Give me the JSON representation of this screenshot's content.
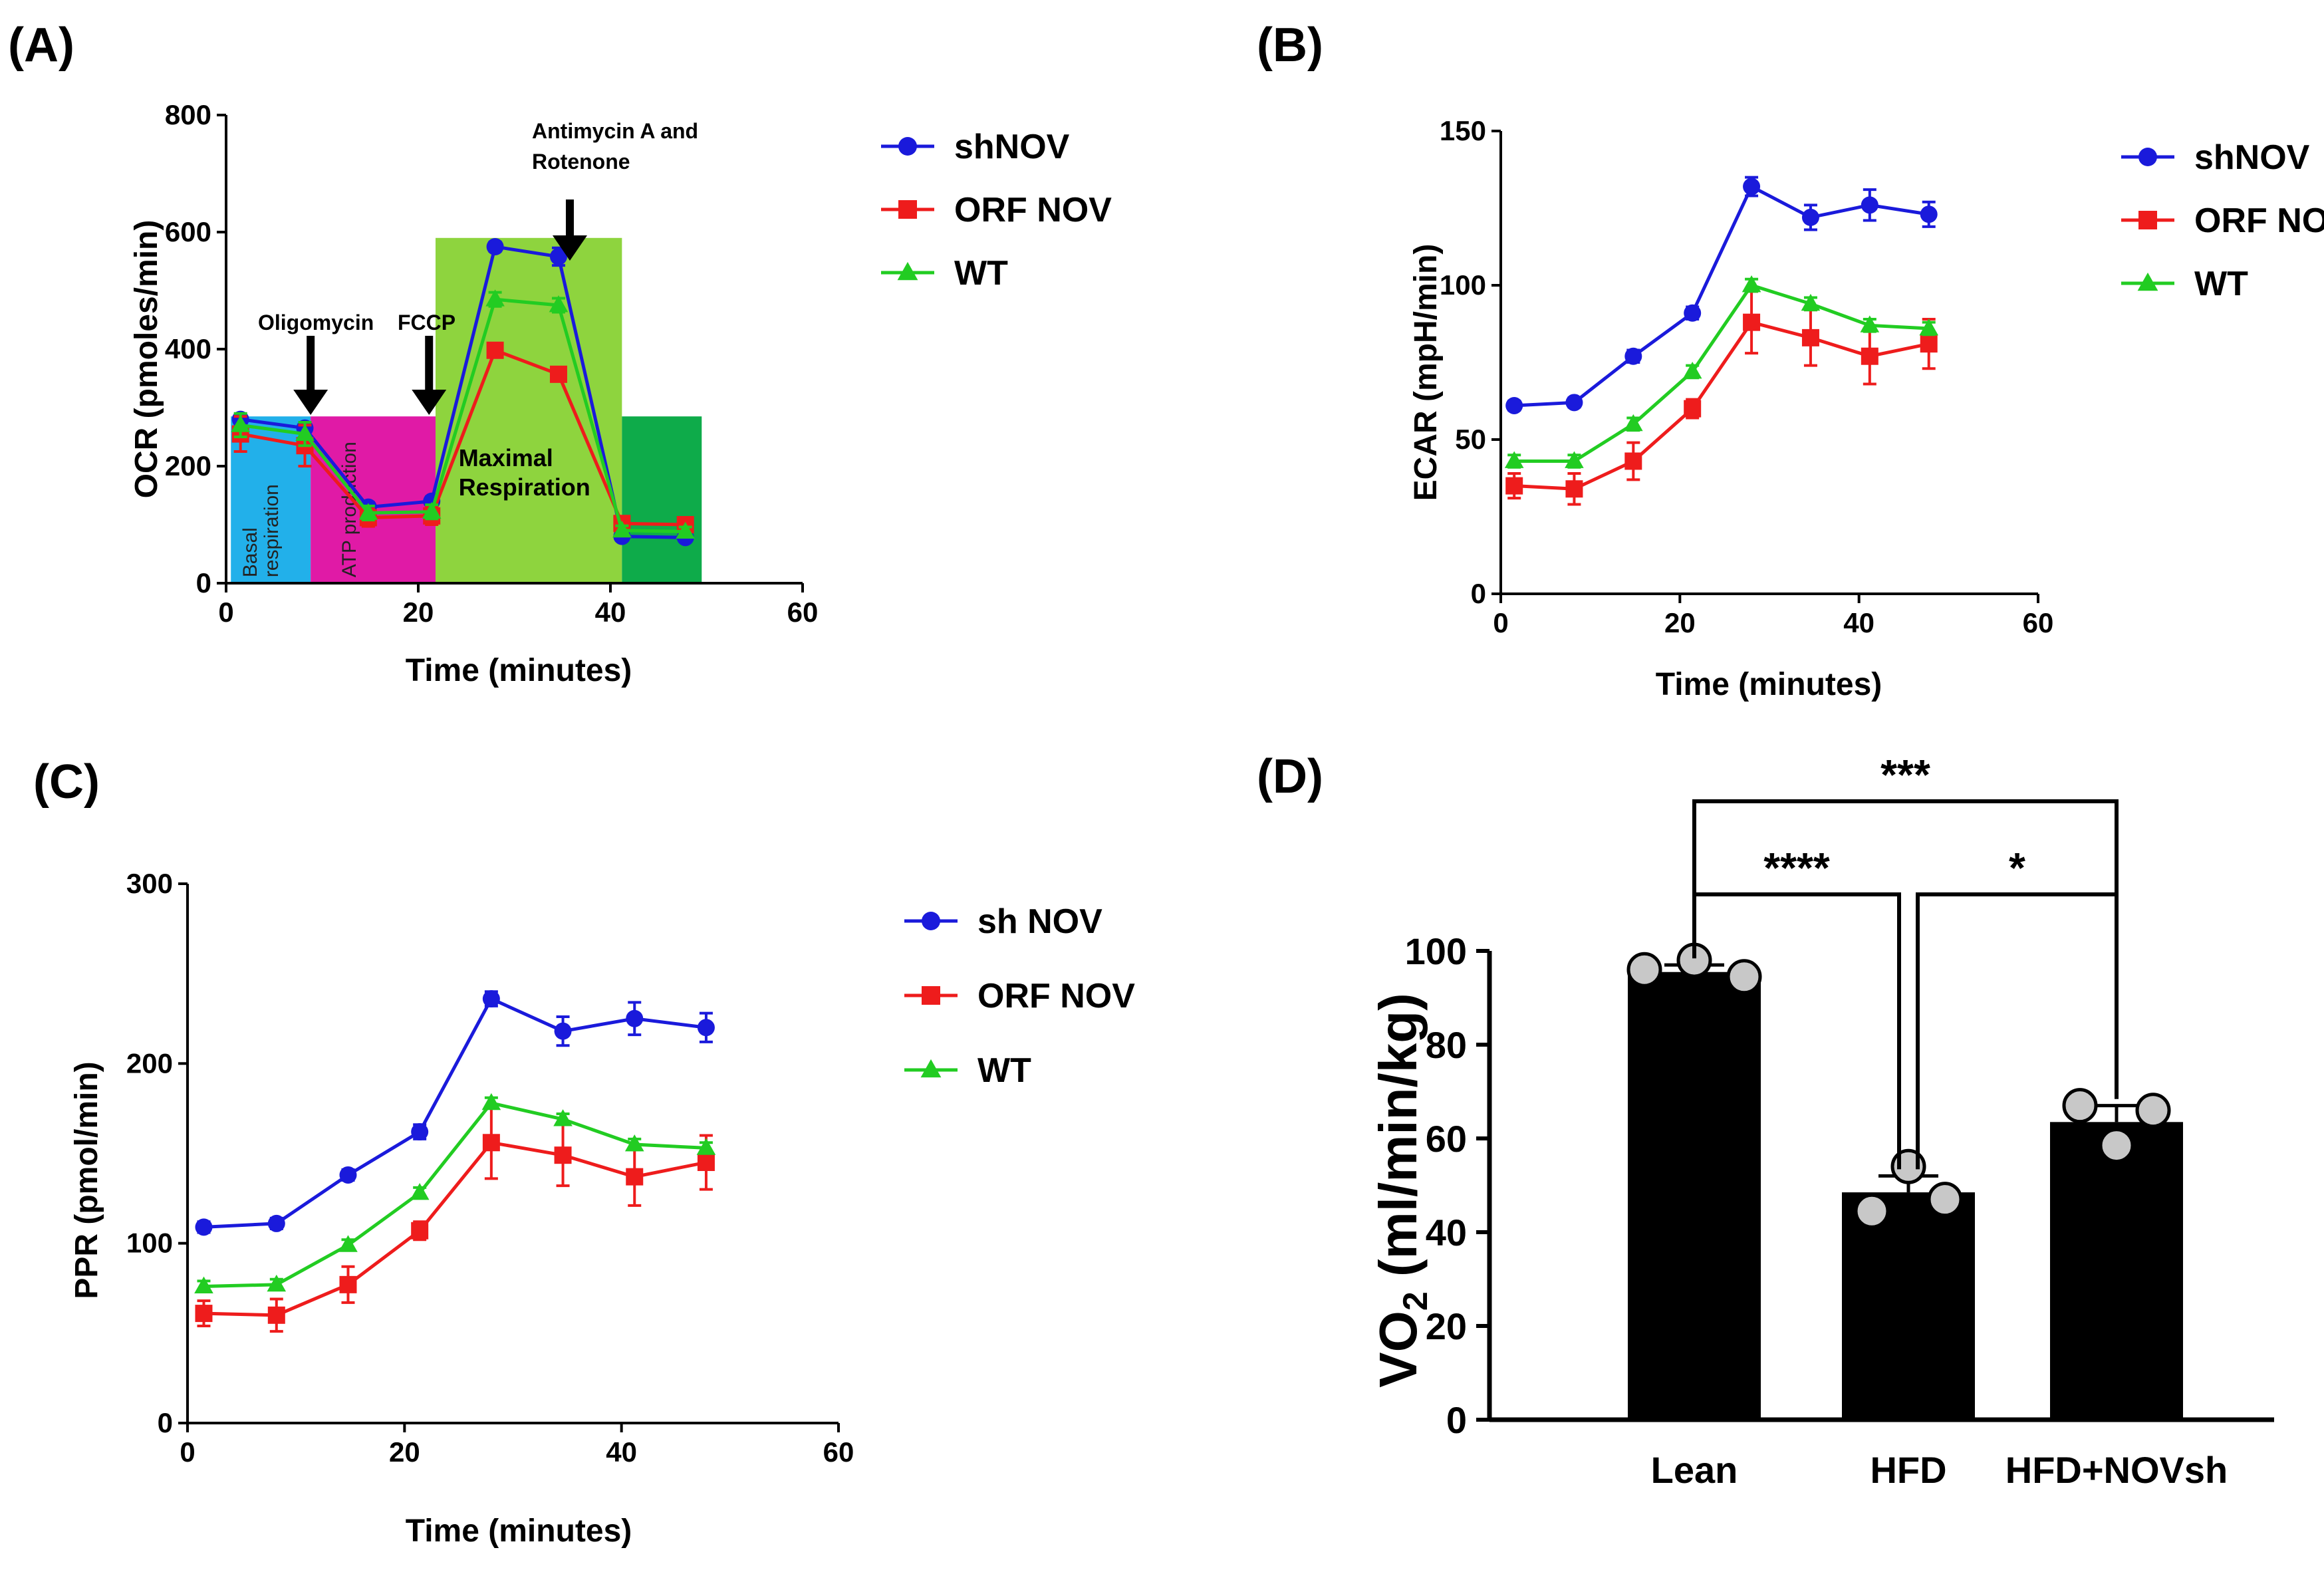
{
  "colors": {
    "shNOV": "#1a1adb",
    "ORF": "#ee1c1c",
    "WT": "#22cc22",
    "basal": "#22b0ea",
    "atp": "#e01aa6",
    "maximal": "#8ed43e",
    "nonmito": "#0eab4a",
    "bar": "#000000",
    "dot": "#c8c8c8"
  },
  "chart_data": [
    {
      "panel": "(A)",
      "type": "line",
      "title": "",
      "xlabel": "Time (minutes)",
      "ylabel": "OCR (pmoles/min)",
      "xlim": [
        0,
        60
      ],
      "ylim": [
        0,
        800
      ],
      "xticks": [
        "0",
        "20",
        "40",
        "60"
      ],
      "yticks": [
        "0",
        "200",
        "400",
        "600",
        "800"
      ],
      "x": [
        1.5,
        8.2,
        14.8,
        21.4,
        28,
        34.6,
        41.2,
        47.8
      ],
      "series": [
        {
          "name": "shNOV",
          "marker": "circle",
          "values": [
            280,
            265,
            130,
            140,
            575,
            558,
            80,
            78
          ],
          "err": [
            8,
            8,
            8,
            8,
            8,
            15,
            6,
            6
          ]
        },
        {
          "name": "ORF NOV",
          "marker": "square",
          "values": [
            255,
            235,
            112,
            115,
            398,
            357,
            102,
            100
          ],
          "err": [
            30,
            35,
            15,
            15,
            10,
            10,
            8,
            8
          ]
        },
        {
          "name": "WT",
          "marker": "triangle",
          "values": [
            270,
            255,
            120,
            122,
            485,
            475,
            90,
            88
          ],
          "err": [
            20,
            20,
            12,
            12,
            12,
            12,
            8,
            8
          ]
        }
      ],
      "regions": [
        {
          "label": "Basal\nrespiration",
          "x0": 0.5,
          "x1": 8.8,
          "y0": 0,
          "y1": 285
        },
        {
          "label": "ATP production",
          "x0": 8.8,
          "x1": 21.8,
          "y0": 0,
          "y1": 285
        },
        {
          "label": "Maximal\nRespiration",
          "x0": 21.8,
          "x1": 41.2,
          "y0": 0,
          "y1": 590
        },
        {
          "label": "",
          "x0": 41.2,
          "x1": 49.5,
          "y0": 0,
          "y1": 285
        }
      ],
      "annotations": [
        {
          "text": "Oligomycin",
          "x": 8.8
        },
        {
          "text": "FCCP",
          "x": 21.4
        },
        {
          "text": "Antimycin A and\nRotenone",
          "x": 35.5
        }
      ],
      "legend": "right"
    },
    {
      "panel": "(B)",
      "type": "line",
      "title": "",
      "xlabel": "Time (minutes)",
      "ylabel": "ECAR (mpH/min)",
      "xlim": [
        0,
        60
      ],
      "ylim": [
        0,
        150
      ],
      "xticks": [
        "0",
        "20",
        "40",
        "60"
      ],
      "yticks": [
        "0",
        "50",
        "100",
        "150"
      ],
      "x": [
        1.5,
        8.2,
        14.8,
        21.4,
        28,
        34.6,
        41.2,
        47.8
      ],
      "series": [
        {
          "name": "shNOV",
          "marker": "circle",
          "values": [
            61,
            62,
            77,
            91,
            132,
            122,
            126,
            123
          ],
          "err": [
            1.5,
            1.5,
            2,
            2,
            3,
            4,
            5,
            4
          ]
        },
        {
          "name": "ORF NOV",
          "marker": "square",
          "values": [
            35,
            34,
            43,
            60,
            88,
            83,
            77,
            81
          ],
          "err": [
            4,
            5,
            6,
            3,
            10,
            9,
            9,
            8
          ]
        },
        {
          "name": "WT",
          "marker": "triangle",
          "values": [
            43,
            43,
            55,
            72,
            100,
            94,
            87,
            86
          ],
          "err": [
            2,
            2,
            2,
            2,
            2,
            2,
            2,
            2
          ]
        }
      ],
      "legend": "right"
    },
    {
      "panel": "(C)",
      "type": "line",
      "title": "",
      "xlabel": "Time (minutes)",
      "ylabel": "PPR (pmol/min)",
      "xlim": [
        0,
        60
      ],
      "ylim": [
        0,
        300
      ],
      "xticks": [
        "0",
        "20",
        "40",
        "60"
      ],
      "yticks": [
        "0",
        "100",
        "200",
        "300"
      ],
      "x": [
        1.5,
        8.2,
        14.8,
        21.4,
        28,
        34.6,
        41.2,
        47.8
      ],
      "series": [
        {
          "name": "sh NOV",
          "marker": "circle",
          "values": [
            109,
            111,
            138,
            162,
            236,
            218,
            225,
            220
          ],
          "err": [
            3,
            3,
            3,
            4,
            4,
            8,
            9,
            8
          ]
        },
        {
          "name": "ORF NOV",
          "marker": "square",
          "values": [
            61,
            60,
            77,
            107,
            156,
            149,
            137,
            145
          ],
          "err": [
            7,
            9,
            10,
            5,
            20,
            17,
            16,
            15
          ]
        },
        {
          "name": "WT",
          "marker": "triangle",
          "values": [
            76,
            77,
            99,
            128,
            178,
            169,
            155,
            153
          ],
          "err": [
            3,
            3,
            3,
            3,
            3,
            3,
            3,
            3
          ]
        }
      ],
      "legend": "right"
    },
    {
      "panel": "(D)",
      "type": "bar",
      "title": "",
      "xlabel": "",
      "ylabel": "VO",
      "ylabel_sub": "2",
      "ylabel_unit": " (ml/min/kg)",
      "ylim": [
        0,
        100
      ],
      "yticks": [
        "0",
        "20",
        "40",
        "60",
        "80",
        "100"
      ],
      "categories": [
        "Lean",
        "HFD",
        "HFD+NOVsh"
      ],
      "values": [
        95.5,
        48.5,
        63.5
      ],
      "err": [
        1.5,
        3.5,
        3.5
      ],
      "points": [
        [
          96,
          98,
          94.5
        ],
        [
          44.5,
          54,
          47
        ],
        [
          67,
          58.5,
          66
        ]
      ],
      "significance": [
        {
          "from": 0,
          "to": 2,
          "label": "***"
        },
        {
          "from": 0,
          "to": 1,
          "label": "****"
        },
        {
          "from": 1,
          "to": 2,
          "label": "*"
        }
      ]
    }
  ]
}
